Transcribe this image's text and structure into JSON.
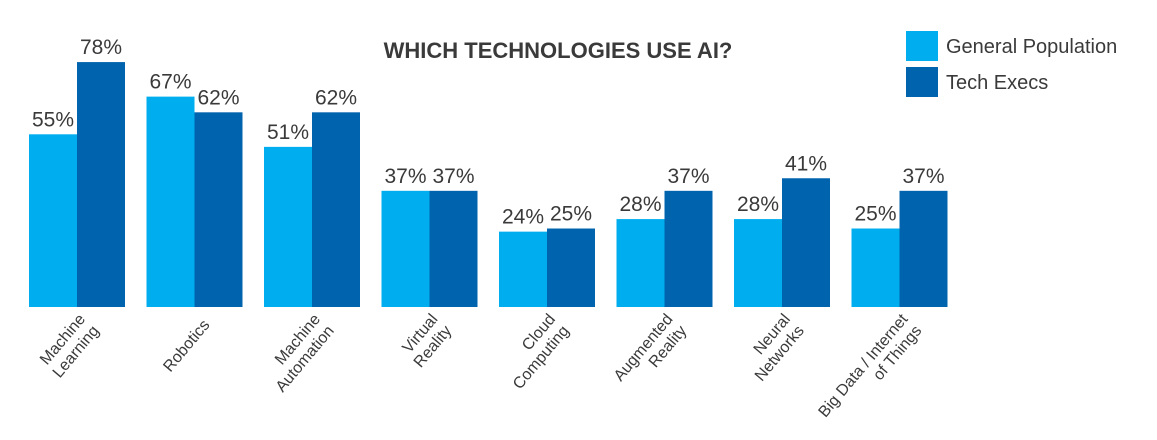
{
  "chart_data": {
    "type": "bar",
    "title": "WHICH TECHNOLOGIES USE AI?",
    "categories": [
      [
        "Machine",
        "Learning"
      ],
      [
        "Robotics"
      ],
      [
        "Machine",
        "Automation"
      ],
      [
        "Virtual",
        "Reality"
      ],
      [
        "Cloud",
        "Computing"
      ],
      [
        "Augmented",
        "Reality"
      ],
      [
        "Neural",
        "Networks"
      ],
      [
        "Big Data / Internet",
        "of Things"
      ]
    ],
    "series": [
      {
        "name": "General Population",
        "color": "#00aeef",
        "values": [
          55,
          67,
          51,
          37,
          24,
          28,
          28,
          25
        ],
        "labels": [
          "55%",
          "67%",
          "51%",
          "37%",
          "24%",
          "28%",
          "28%",
          "25%"
        ]
      },
      {
        "name": "Tech Execs",
        "color": "#0063ad",
        "values": [
          78,
          62,
          62,
          37,
          25,
          37,
          41,
          37
        ],
        "labels": [
          "78%",
          "62%",
          "62%",
          "37%",
          "25%",
          "37%",
          "41%",
          "37%"
        ]
      }
    ],
    "ylim": [
      0,
      100
    ],
    "grid": false,
    "legend": "top-right"
  }
}
